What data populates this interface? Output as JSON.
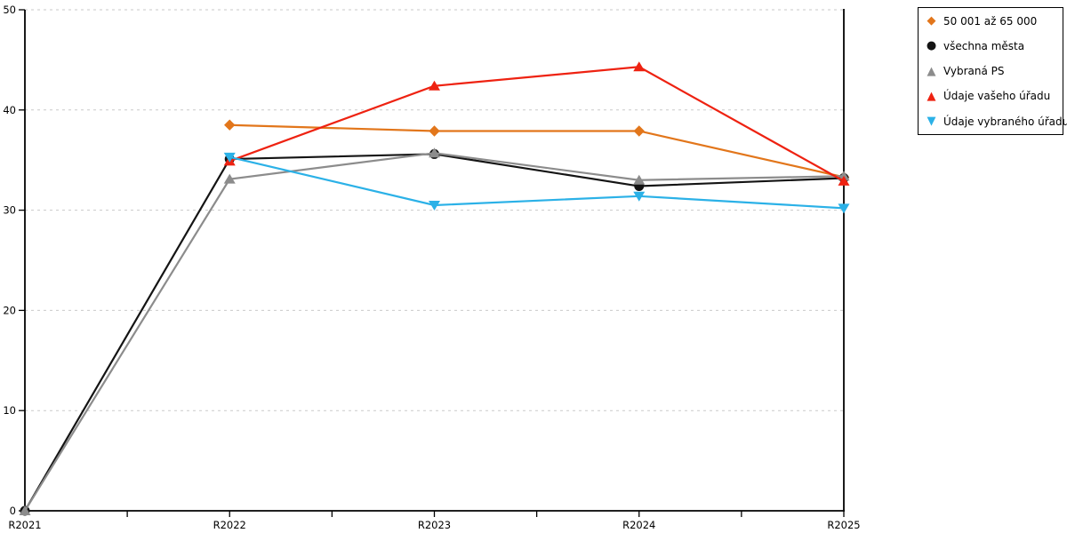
{
  "chart_data": {
    "type": "line",
    "title": "",
    "xlabel": "",
    "ylabel": "",
    "categories": [
      "R2021",
      "R2022",
      "R2023",
      "R2024",
      "R2025"
    ],
    "ylim": [
      0,
      50
    ],
    "yticks": [
      0,
      10,
      20,
      30,
      40,
      50
    ],
    "grid": "horizontal dashed light-gray",
    "legend_position": "outside top-right boxed",
    "axis_color": "#000000",
    "gridline_color": "#c9c9c9",
    "series": [
      {
        "name": "50 001 až 65 000",
        "color": "#e2761b",
        "marker": "diamond",
        "values": [
          null,
          38.5,
          37.9,
          37.9,
          33.3
        ]
      },
      {
        "name": "všechna města",
        "color": "#141414",
        "marker": "circle",
        "values": [
          0,
          35.1,
          35.6,
          32.4,
          33.2
        ]
      },
      {
        "name": "Vybraná PS",
        "color": "#8c8c8c",
        "marker": "triangle-up",
        "values": [
          0,
          33.1,
          35.7,
          33.0,
          33.4
        ]
      },
      {
        "name": "Údaje vašeho úřadu",
        "color": "#ee2211",
        "marker": "triangle-up",
        "values": [
          null,
          34.9,
          42.4,
          44.3,
          32.9
        ]
      },
      {
        "name": "Údaje vybraného úřadu",
        "color": "#2bb1e7",
        "marker": "triangle-down",
        "values": [
          null,
          35.3,
          30.5,
          31.4,
          30.2
        ]
      }
    ]
  }
}
